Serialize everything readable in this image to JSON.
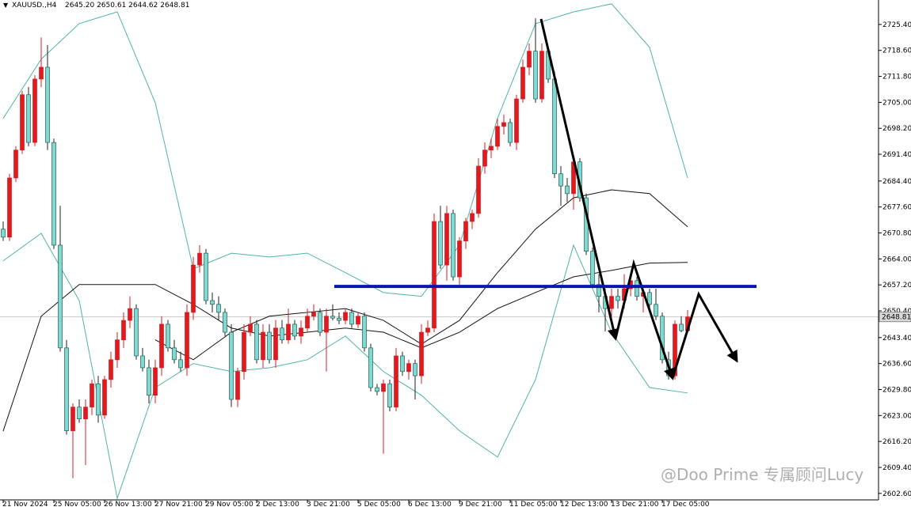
{
  "chart_data": {
    "type": "candlestick",
    "title": "XAUUSD.,H4",
    "ohlc_label": "2645.20 2650.61 2644.62 2648.81",
    "watermark": "@Doo Prime 专属顾问Lucy",
    "up_color": "#e0191e",
    "down_color": "#7fd9cf",
    "ylim": [
      2600.9,
      2731.8
    ],
    "yticks": [
      {
        "value": 2725.4,
        "label": "2725.40"
      },
      {
        "value": 2718.6,
        "label": "2718.60"
      },
      {
        "value": 2711.8,
        "label": "2711.80"
      },
      {
        "value": 2705.0,
        "label": "2705.00"
      },
      {
        "value": 2698.2,
        "label": "2698.20"
      },
      {
        "value": 2691.4,
        "label": "2691.40"
      },
      {
        "value": 2684.4,
        "label": "2684.40"
      },
      {
        "value": 2677.6,
        "label": "2677.60"
      },
      {
        "value": 2670.8,
        "label": "2670.80"
      },
      {
        "value": 2664.0,
        "label": "2664.00"
      },
      {
        "value": 2657.2,
        "label": "2657.20"
      },
      {
        "value": 2650.4,
        "label": "2650.40"
      },
      {
        "value": 2643.4,
        "label": "2643.40"
      },
      {
        "value": 2636.6,
        "label": "2636.60"
      },
      {
        "value": 2629.8,
        "label": "2629.80"
      },
      {
        "value": 2623.0,
        "label": "2623.00"
      },
      {
        "value": 2616.2,
        "label": "2616.20"
      },
      {
        "value": 2609.4,
        "label": "2609.40"
      },
      {
        "value": 2602.6,
        "label": "2602.60"
      }
    ],
    "last_price": 2648.81,
    "level": {
      "value": 2656.8,
      "color": "#0a14b4"
    },
    "categories": [
      "21 Nov 2024",
      null,
      null,
      null,
      null,
      null,
      null,
      null,
      "25 Nov 05:00",
      null,
      null,
      null,
      null,
      null,
      null,
      null,
      "26 Nov 13:00",
      null,
      null,
      null,
      null,
      null,
      null,
      null,
      "27 Nov 21:00",
      null,
      null,
      null,
      null,
      null,
      null,
      null,
      "29 Nov 05:00",
      null,
      null,
      null,
      null,
      null,
      null,
      null,
      "2 Dec 13:00",
      null,
      null,
      null,
      null,
      null,
      null,
      null,
      "3 Dec 21:00",
      null,
      null,
      null,
      null,
      null,
      null,
      null,
      "5 Dec 05:00",
      null,
      null,
      null,
      null,
      null,
      null,
      null,
      "6 Dec 13:00",
      null,
      null,
      null,
      null,
      null,
      null,
      null,
      "9 Dec 21:00",
      null,
      null,
      null,
      null,
      null,
      null,
      null,
      "11 Dec 05:00",
      null,
      null,
      null,
      null,
      null,
      null,
      null,
      "12 Dec 13:00",
      null,
      null,
      null,
      null,
      null,
      null,
      null,
      "13 Dec 21:00",
      null,
      null,
      null,
      null,
      null,
      null,
      null,
      "17 Dec 05:00",
      null,
      null,
      null,
      null
    ],
    "ohlc": [
      [
        2671.8,
        2673.8,
        2668.7,
        2669.7
      ],
      [
        2669.7,
        2686.3,
        2668.7,
        2685.2
      ],
      [
        2685.2,
        2693.5,
        2684.1,
        2692.5
      ],
      [
        2692.5,
        2708.0,
        2691.5,
        2707.0
      ],
      [
        2707.0,
        2709.0,
        2693.5,
        2694.5
      ],
      [
        2694.5,
        2712.1,
        2693.5,
        2711.1
      ],
      [
        2711.1,
        2722.0,
        2709.0,
        2714.2
      ],
      [
        2714.2,
        2720.0,
        2692.5,
        2694.5
      ],
      [
        2694.5,
        2695.5,
        2666.6,
        2667.6
      ],
      [
        2667.6,
        2677.9,
        2639.7,
        2640.7
      ],
      [
        2640.7,
        2642.8,
        2618.0,
        2619.0
      ],
      [
        2619.0,
        2626.2,
        2606.6,
        2625.2
      ],
      [
        2625.2,
        2627.2,
        2621.1,
        2622.1
      ],
      [
        2622.1,
        2627.2,
        2610.0,
        2625.2
      ],
      [
        2625.2,
        2632.4,
        2623.1,
        2631.3
      ],
      [
        2631.3,
        2633.4,
        2621.1,
        2623.1
      ],
      [
        2623.1,
        2633.4,
        2622.1,
        2632.4
      ],
      [
        2632.4,
        2639.7,
        2630.3,
        2637.6
      ],
      [
        2637.6,
        2644.8,
        2635.5,
        2642.8
      ],
      [
        2642.8,
        2650.0,
        2640.7,
        2647.9
      ],
      [
        2647.9,
        2654.2,
        2645.9,
        2651.0
      ],
      [
        2651.0,
        2652.1,
        2637.6,
        2638.6
      ],
      [
        2638.6,
        2640.7,
        2634.5,
        2635.5
      ],
      [
        2635.5,
        2637.6,
        2626.2,
        2628.3
      ],
      [
        2628.3,
        2637.6,
        2626.2,
        2635.5
      ],
      [
        2635.5,
        2649.0,
        2633.4,
        2646.9
      ],
      [
        2646.9,
        2648.0,
        2639.7,
        2640.7
      ],
      [
        2640.7,
        2642.8,
        2636.6,
        2637.6
      ],
      [
        2637.6,
        2639.7,
        2634.5,
        2635.5
      ],
      [
        2635.5,
        2652.1,
        2633.4,
        2650.0
      ],
      [
        2650.0,
        2664.5,
        2648.0,
        2662.4
      ],
      [
        2662.4,
        2667.6,
        2660.4,
        2665.5
      ],
      [
        2665.5,
        2666.6,
        2652.1,
        2653.1
      ],
      [
        2653.1,
        2655.2,
        2650.0,
        2652.1
      ],
      [
        2652.1,
        2654.2,
        2648.0,
        2650.0
      ],
      [
        2650.0,
        2651.0,
        2643.8,
        2644.8
      ],
      [
        2644.8,
        2646.9,
        2625.2,
        2627.2
      ],
      [
        2627.2,
        2635.5,
        2625.2,
        2634.5
      ],
      [
        2634.5,
        2646.9,
        2632.4,
        2644.8
      ],
      [
        2644.8,
        2649.0,
        2643.8,
        2646.9
      ],
      [
        2646.9,
        2648.0,
        2636.6,
        2637.6
      ],
      [
        2637.6,
        2646.9,
        2635.5,
        2644.8
      ],
      [
        2644.8,
        2646.9,
        2636.6,
        2637.6
      ],
      [
        2637.6,
        2648.0,
        2635.5,
        2645.9
      ],
      [
        2645.9,
        2648.0,
        2641.8,
        2642.8
      ],
      [
        2642.8,
        2651.0,
        2641.8,
        2646.9
      ],
      [
        2646.9,
        2648.0,
        2642.8,
        2643.8
      ],
      [
        2643.8,
        2647.9,
        2641.8,
        2645.9
      ],
      [
        2645.9,
        2651.0,
        2644.8,
        2649.0
      ],
      [
        2649.0,
        2652.1,
        2647.9,
        2650.0
      ],
      [
        2650.0,
        2651.0,
        2643.8,
        2644.8
      ],
      [
        2644.8,
        2651.0,
        2634.5,
        2649.0
      ],
      [
        2649.0,
        2652.1,
        2647.9,
        2648.5
      ],
      [
        2648.5,
        2650.0,
        2646.9,
        2647.9
      ],
      [
        2647.9,
        2651.0,
        2646.9,
        2650.0
      ],
      [
        2650.0,
        2651.0,
        2645.9,
        2646.9
      ],
      [
        2646.9,
        2650.0,
        2645.9,
        2649.0
      ],
      [
        2649.0,
        2650.0,
        2639.7,
        2640.7
      ],
      [
        2640.7,
        2641.8,
        2629.3,
        2630.3
      ],
      [
        2630.3,
        2631.3,
        2628.3,
        2629.3
      ],
      [
        2629.3,
        2632.4,
        2613.0,
        2631.3
      ],
      [
        2631.3,
        2632.4,
        2624.1,
        2625.2
      ],
      [
        2625.2,
        2640.7,
        2624.1,
        2638.6
      ],
      [
        2638.6,
        2639.7,
        2633.4,
        2634.5
      ],
      [
        2634.5,
        2637.6,
        2632.4,
        2636.6
      ],
      [
        2636.6,
        2637.6,
        2627.2,
        2633.4
      ],
      [
        2633.4,
        2646.9,
        2631.3,
        2644.8
      ],
      [
        2644.8,
        2647.9,
        2643.8,
        2645.9
      ],
      [
        2645.9,
        2675.9,
        2644.8,
        2673.8
      ],
      [
        2673.8,
        2677.9,
        2661.4,
        2662.4
      ],
      [
        2662.4,
        2677.9,
        2658.3,
        2675.9
      ],
      [
        2675.9,
        2676.9,
        2658.3,
        2659.3
      ],
      [
        2659.3,
        2669.7,
        2657.3,
        2668.7
      ],
      [
        2668.7,
        2674.8,
        2666.6,
        2673.8
      ],
      [
        2673.8,
        2676.9,
        2671.8,
        2675.9
      ],
      [
        2675.9,
        2690.4,
        2674.8,
        2688.3
      ],
      [
        2688.3,
        2694.5,
        2686.3,
        2692.5
      ],
      [
        2692.5,
        2695.5,
        2690.4,
        2693.5
      ],
      [
        2693.5,
        2700.7,
        2692.5,
        2698.7
      ],
      [
        2698.7,
        2701.8,
        2696.6,
        2699.7
      ],
      [
        2699.7,
        2700.7,
        2693.5,
        2694.5
      ],
      [
        2694.5,
        2707.0,
        2692.5,
        2705.9
      ],
      [
        2705.9,
        2716.2,
        2704.9,
        2714.2
      ],
      [
        2714.2,
        2720.4,
        2712.1,
        2718.4
      ],
      [
        2718.4,
        2727.0,
        2704.9,
        2705.9
      ],
      [
        2705.9,
        2720.4,
        2704.9,
        2718.4
      ],
      [
        2718.4,
        2719.5,
        2710.1,
        2711.1
      ],
      [
        2711.1,
        2713.1,
        2685.2,
        2686.3
      ],
      [
        2686.3,
        2688.3,
        2677.9,
        2683.1
      ],
      [
        2683.1,
        2685.2,
        2678.9,
        2681.1
      ],
      [
        2681.1,
        2690.4,
        2676.9,
        2689.4
      ],
      [
        2689.4,
        2690.4,
        2679.0,
        2680.0
      ],
      [
        2680.0,
        2681.1,
        2665.0,
        2666.0
      ],
      [
        2666.0,
        2667.0,
        2656.3,
        2657.3
      ],
      [
        2657.3,
        2660.0,
        2650.0,
        2654.2
      ],
      [
        2654.2,
        2656.2,
        2645.0,
        2651.0
      ],
      [
        2651.0,
        2656.2,
        2649.0,
        2654.2
      ],
      [
        2654.2,
        2656.2,
        2651.0,
        2653.1
      ],
      [
        2653.1,
        2660.0,
        2651.0,
        2656.2
      ],
      [
        2656.2,
        2659.3,
        2654.2,
        2658.3
      ],
      [
        2658.3,
        2659.3,
        2653.1,
        2654.2
      ],
      [
        2654.2,
        2656.2,
        2650.0,
        2655.2
      ],
      [
        2655.2,
        2656.2,
        2651.0,
        2652.1
      ],
      [
        2652.1,
        2656.2,
        2648.0,
        2649.0
      ],
      [
        2649.0,
        2650.0,
        2636.6,
        2637.6
      ],
      [
        2637.6,
        2639.7,
        2632.4,
        2633.4
      ],
      [
        2633.4,
        2647.9,
        2632.4,
        2646.9
      ],
      [
        2646.9,
        2649.0,
        2644.8,
        2645.2
      ],
      [
        2645.2,
        2650.61,
        2644.62,
        2648.81
      ]
    ],
    "line_x": [
      0,
      6,
      12,
      18,
      24,
      30,
      36,
      42,
      48,
      54,
      60,
      66,
      72,
      78,
      84,
      90,
      96,
      102,
      108
    ],
    "lines": [
      {
        "color": "#4fb3a6",
        "values": [
          2700.8,
          2716.3,
          2725.6,
          2728.7,
          2704.9,
          2661.4,
          2665.5,
          2664.5,
          2665.5,
          2660.4,
          2655.2,
          2654.2,
          2667.6,
          2700.8,
          2725.6,
          2728.7,
          2730.8,
          2719.4,
          2685.2
        ]
      },
      {
        "color": "#4fb3a6",
        "values": [
          2663.5,
          2670.7,
          2653.1,
          2601.3,
          2630.3,
          2636.6,
          2634.5,
          2635.5,
          2637.6,
          2643.8,
          2634.5,
          2628.3,
          2619.0,
          2612.1,
          2632.4,
          2667.6,
          2644.8,
          2630.3,
          2628.9
        ]
      },
      {
        "color": "#111111",
        "values": [
          2618.9,
          2649.0,
          2657.3,
          2657.3,
          2657.3,
          2652.1,
          2645.9,
          2643.8,
          2644.8,
          2645.9,
          2644.8,
          2640.7,
          2644.8,
          2651.0,
          2655.2,
          2659.3,
          2661.0,
          2662.9,
          2663.1
        ]
      },
      {
        "color": "#111111",
        "values": [
          null,
          null,
          null,
          null,
          2642.8,
          2637.6,
          2644.8,
          2649.0,
          2650.0,
          2651.0,
          2647.9,
          2641.7,
          2647.9,
          2660.4,
          2671.8,
          2680.0,
          2682.1,
          2681.1,
          2672.4
        ]
      }
    ]
  }
}
